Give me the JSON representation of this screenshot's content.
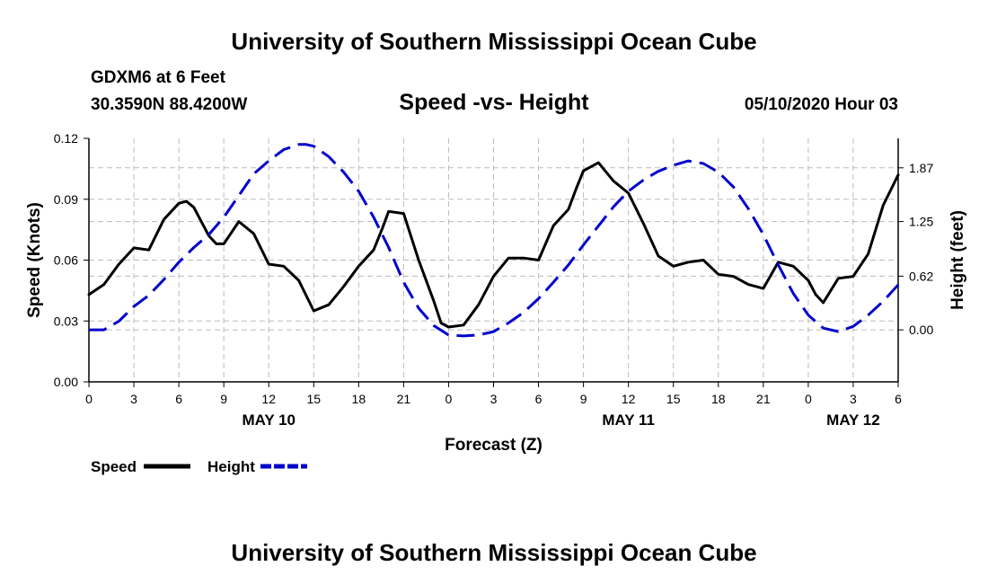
{
  "header": {
    "top_title": "University of Southern Mississippi Ocean Cube",
    "station": "GDXM6 at 6 Feet",
    "coords": "30.3590N 88.4200W",
    "center_title": "Speed -vs- Height",
    "datetime": "05/10/2020 Hour 03"
  },
  "footer": {
    "bottom_title": "University of Southern Mississippi Ocean Cube"
  },
  "colors": {
    "speed": "#000000",
    "height": "#0000cc",
    "grid": "#bbbbbb"
  },
  "chart_data": {
    "type": "line",
    "title": "Speed -vs- Height",
    "xlabel": "Forecast (Z)",
    "ylabel": "Speed (Knots)",
    "y2label": "Height (feet)",
    "xlim": [
      0,
      54
    ],
    "ylim": [
      0,
      0.12
    ],
    "y2lim": [
      -0.6,
      2.21
    ],
    "xtick_positions": [
      0,
      3,
      6,
      9,
      12,
      15,
      18,
      21,
      24,
      27,
      30,
      33,
      36,
      39,
      42,
      45,
      48,
      51,
      54
    ],
    "xtick_labels": [
      "0",
      "3",
      "6",
      "9",
      "12",
      "15",
      "18",
      "21",
      "0",
      "3",
      "6",
      "9",
      "12",
      "15",
      "18",
      "21",
      "0",
      "3",
      "6"
    ],
    "date_labels": [
      {
        "x": 12,
        "label": "MAY 10"
      },
      {
        "x": 36,
        "label": "MAY 11"
      },
      {
        "x": 51,
        "label": "MAY 12"
      }
    ],
    "yticks": [
      0.0,
      0.03,
      0.06,
      0.09,
      0.12
    ],
    "ytick_labels": [
      "0.00",
      "0.03",
      "0.06",
      "0.09",
      "0.12"
    ],
    "y2ticks": [
      0.0,
      0.62,
      1.25,
      1.87
    ],
    "y2tick_labels": [
      "0.00",
      "0.62",
      "1.25",
      "1.87"
    ],
    "grid": true,
    "series": [
      {
        "name": "Speed",
        "axis": "left",
        "style": "solid",
        "x": [
          0,
          1,
          2,
          3,
          4,
          5,
          6,
          6.5,
          7,
          8,
          8.5,
          9,
          10,
          11,
          12,
          13,
          14,
          15,
          16,
          17,
          18,
          19,
          19.6,
          20,
          21,
          22,
          23,
          23.5,
          24,
          25,
          26,
          27,
          28,
          29,
          30,
          31,
          32,
          32.5,
          33,
          34,
          35,
          36,
          37,
          38,
          39,
          40,
          41,
          42,
          43,
          44,
          45,
          46,
          47,
          48,
          48.5,
          49,
          50,
          51,
          52,
          53,
          54
        ],
        "values": [
          0.043,
          0.048,
          0.058,
          0.066,
          0.065,
          0.08,
          0.088,
          0.089,
          0.086,
          0.072,
          0.068,
          0.068,
          0.079,
          0.073,
          0.058,
          0.057,
          0.05,
          0.035,
          0.038,
          0.047,
          0.057,
          0.065,
          0.076,
          0.084,
          0.083,
          0.06,
          0.04,
          0.029,
          0.027,
          0.028,
          0.038,
          0.052,
          0.061,
          0.061,
          0.06,
          0.077,
          0.085,
          0.095,
          0.104,
          0.108,
          0.099,
          0.093,
          0.078,
          0.062,
          0.057,
          0.059,
          0.06,
          0.053,
          0.052,
          0.048,
          0.046,
          0.059,
          0.057,
          0.05,
          0.043,
          0.039,
          0.051,
          0.052,
          0.063,
          0.087,
          0.102
        ]
      },
      {
        "name": "Height",
        "axis": "right",
        "style": "dashed",
        "x": [
          0,
          1,
          2,
          3,
          4,
          5,
          6,
          7,
          8,
          9,
          10,
          11,
          12,
          13,
          14,
          14.5,
          15,
          16,
          17,
          18,
          19,
          20,
          21,
          22,
          23,
          24,
          25,
          26,
          27,
          28,
          29,
          30,
          31,
          32,
          33,
          34,
          35,
          36,
          37,
          38,
          39,
          40,
          41,
          42,
          43,
          44,
          45,
          46,
          47,
          48,
          49,
          50,
          51,
          52,
          53,
          54
        ],
        "values": [
          0.0,
          0.0,
          0.1,
          0.27,
          0.4,
          0.58,
          0.78,
          0.95,
          1.1,
          1.3,
          1.55,
          1.8,
          1.95,
          2.08,
          2.14,
          2.14,
          2.12,
          2.0,
          1.82,
          1.6,
          1.3,
          0.95,
          0.55,
          0.25,
          0.05,
          -0.06,
          -0.07,
          -0.06,
          -0.02,
          0.08,
          0.2,
          0.36,
          0.55,
          0.75,
          0.98,
          1.2,
          1.42,
          1.6,
          1.73,
          1.83,
          1.9,
          1.95,
          1.92,
          1.82,
          1.65,
          1.4,
          1.1,
          0.75,
          0.42,
          0.17,
          0.02,
          -0.02,
          0.04,
          0.17,
          0.33,
          0.52
        ]
      }
    ],
    "legend": [
      {
        "name": "Speed",
        "style": "solid"
      },
      {
        "name": "Height",
        "style": "dashed"
      }
    ],
    "legend_position": "bottom-left"
  }
}
